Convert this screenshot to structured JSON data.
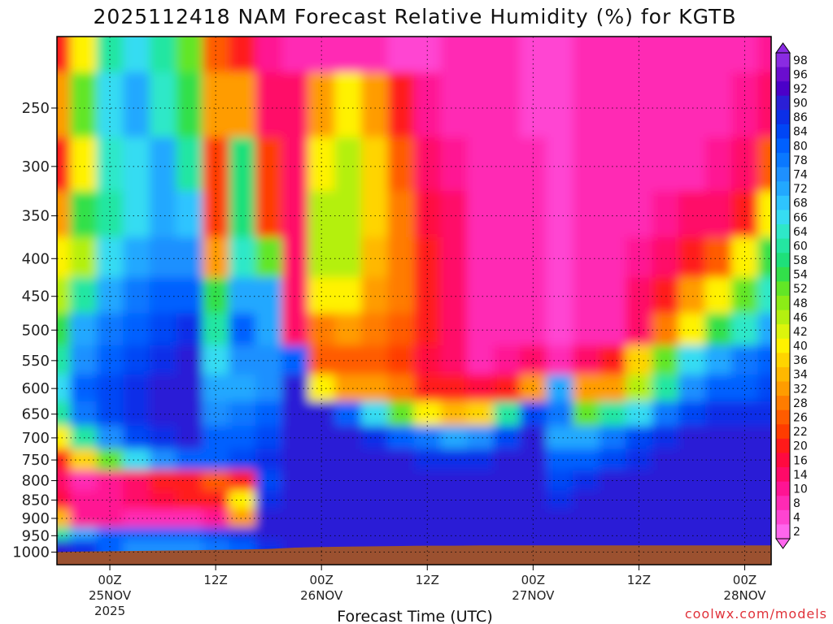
{
  "chart_data": {
    "type": "heatmap",
    "title": "2025112418 NAM Forecast Relative Humidity (%) for KGTB",
    "xlabel": "Forecast Time (UTC)",
    "ylabel": "",
    "credit": "coolwx.com/models",
    "y_scale": "log-pressure",
    "y_axis_units": "hPa",
    "ylim": [
      1040,
      200
    ],
    "xlim": [
      "2025-11-24 18Z",
      "2025-11-28 03Z"
    ],
    "yticks": [
      250,
      300,
      350,
      400,
      450,
      500,
      550,
      600,
      650,
      700,
      750,
      800,
      850,
      900,
      950,
      1000
    ],
    "xticks": [
      {
        "time": "2025-11-25 00Z",
        "line1": "00Z",
        "line2": "25NOV",
        "line3": "2025"
      },
      {
        "time": "2025-11-25 12Z",
        "line1": "12Z",
        "line2": "",
        "line3": ""
      },
      {
        "time": "2025-11-26 00Z",
        "line1": "00Z",
        "line2": "26NOV",
        "line3": ""
      },
      {
        "time": "2025-11-26 12Z",
        "line1": "12Z",
        "line2": "",
        "line3": ""
      },
      {
        "time": "2025-11-27 00Z",
        "line1": "00Z",
        "line2": "27NOV",
        "line3": ""
      },
      {
        "time": "2025-11-27 12Z",
        "line1": "12Z",
        "line2": "",
        "line3": ""
      },
      {
        "time": "2025-11-28 00Z",
        "line1": "00Z",
        "line2": "28NOV",
        "line3": ""
      }
    ],
    "grid": true,
    "legend": "right colorbar",
    "colorbar_labels": [
      "98",
      "96",
      "92",
      "90",
      "86",
      "84",
      "80",
      "78",
      "74",
      "72",
      "68",
      "66",
      "64",
      "60",
      "58",
      "54",
      "52",
      "48",
      "46",
      "42",
      "40",
      "36",
      "34",
      "32",
      "28",
      "26",
      "22",
      "20",
      "16",
      "14",
      "10",
      "8",
      "4",
      "2"
    ],
    "colorbar_colors": [
      "#8a2be2",
      "#6a0dcf",
      "#4b00c8",
      "#2a1fd6",
      "#0b2fe8",
      "#0046f5",
      "#0060ff",
      "#0a78ff",
      "#1e90ff",
      "#22a8ff",
      "#2ec4ff",
      "#36dcf2",
      "#2ee8c8",
      "#24e6a2",
      "#1ee07a",
      "#32e04a",
      "#62e626",
      "#8cec16",
      "#b4f010",
      "#dcf40c",
      "#fff200",
      "#ffd400",
      "#ffb800",
      "#ff9c00",
      "#ff7c00",
      "#ff5c00",
      "#ff3c00",
      "#ff1a1a",
      "#ff0a40",
      "#ff0a68",
      "#ff1493",
      "#ff2ab4",
      "#ff44d2",
      "#ff66ee"
    ],
    "rh_field": {
      "times": [
        "2025-11-24 18Z",
        "2025-11-24 21Z",
        "2025-11-25 00Z",
        "2025-11-25 03Z",
        "2025-11-25 06Z",
        "2025-11-25 09Z",
        "2025-11-25 12Z",
        "2025-11-25 15Z",
        "2025-11-25 18Z",
        "2025-11-25 21Z",
        "2025-11-26 00Z",
        "2025-11-26 03Z",
        "2025-11-26 06Z",
        "2025-11-26 09Z",
        "2025-11-26 12Z",
        "2025-11-26 15Z",
        "2025-11-26 18Z",
        "2025-11-26 21Z",
        "2025-11-27 00Z",
        "2025-11-27 03Z",
        "2025-11-27 06Z",
        "2025-11-27 09Z",
        "2025-11-27 12Z",
        "2025-11-27 15Z",
        "2025-11-27 18Z",
        "2025-11-27 21Z",
        "2025-11-28 00Z",
        "2025-11-28 03Z"
      ],
      "levels": [
        200,
        250,
        300,
        350,
        400,
        450,
        500,
        550,
        600,
        650,
        700,
        750,
        800,
        850,
        900,
        950,
        975
      ],
      "values": [
        [
          20,
          40,
          60,
          66,
          60,
          50,
          25,
          20,
          10,
          8,
          6,
          5,
          5,
          4,
          4,
          5,
          6,
          5,
          4,
          4,
          5,
          6,
          8,
          6,
          5,
          6,
          8,
          10
        ],
        [
          30,
          50,
          66,
          70,
          64,
          54,
          30,
          30,
          14,
          12,
          30,
          40,
          30,
          20,
          10,
          8,
          6,
          5,
          4,
          4,
          5,
          6,
          8,
          7,
          6,
          8,
          10,
          14
        ],
        [
          20,
          40,
          62,
          66,
          70,
          60,
          22,
          56,
          22,
          14,
          40,
          46,
          36,
          26,
          14,
          10,
          8,
          6,
          5,
          4,
          5,
          6,
          8,
          8,
          8,
          10,
          14,
          26
        ],
        [
          30,
          54,
          60,
          66,
          70,
          68,
          22,
          58,
          22,
          14,
          46,
          46,
          36,
          28,
          16,
          12,
          8,
          6,
          5,
          4,
          5,
          6,
          8,
          10,
          12,
          14,
          20,
          40
        ],
        [
          40,
          46,
          66,
          72,
          74,
          74,
          30,
          64,
          50,
          12,
          44,
          46,
          34,
          28,
          18,
          12,
          8,
          6,
          5,
          4,
          5,
          6,
          10,
          14,
          18,
          24,
          40,
          54
        ],
        [
          46,
          60,
          70,
          76,
          80,
          80,
          54,
          70,
          70,
          14,
          40,
          40,
          30,
          28,
          18,
          12,
          8,
          6,
          5,
          4,
          5,
          8,
          12,
          20,
          30,
          40,
          50,
          64
        ],
        [
          54,
          70,
          76,
          80,
          84,
          86,
          60,
          80,
          72,
          14,
          28,
          30,
          28,
          26,
          18,
          12,
          8,
          6,
          5,
          4,
          5,
          8,
          14,
          28,
          40,
          54,
          64,
          70
        ],
        [
          60,
          74,
          80,
          84,
          86,
          88,
          66,
          74,
          74,
          80,
          24,
          26,
          24,
          22,
          16,
          12,
          8,
          10,
          12,
          6,
          12,
          18,
          36,
          52,
          66,
          72,
          76,
          80
        ],
        [
          66,
          80,
          84,
          86,
          88,
          90,
          70,
          70,
          74,
          88,
          40,
          32,
          30,
          28,
          20,
          18,
          16,
          20,
          30,
          70,
          30,
          30,
          44,
          60,
          74,
          80,
          80,
          84
        ],
        [
          60,
          76,
          84,
          86,
          88,
          90,
          74,
          76,
          80,
          90,
          88,
          80,
          66,
          50,
          40,
          34,
          36,
          60,
          84,
          78,
          50,
          60,
          66,
          76,
          84,
          86,
          86,
          86
        ],
        [
          40,
          60,
          74,
          84,
          86,
          88,
          80,
          80,
          82,
          90,
          90,
          90,
          86,
          80,
          76,
          72,
          74,
          84,
          90,
          70,
          70,
          76,
          84,
          86,
          90,
          90,
          90,
          90
        ],
        [
          20,
          36,
          50,
          66,
          74,
          80,
          80,
          84,
          86,
          90,
          90,
          90,
          90,
          88,
          86,
          86,
          86,
          88,
          90,
          80,
          80,
          84,
          86,
          88,
          90,
          90,
          90,
          90
        ],
        [
          14,
          8,
          10,
          14,
          20,
          20,
          24,
          20,
          84,
          90,
          90,
          90,
          90,
          90,
          90,
          90,
          90,
          90,
          90,
          84,
          86,
          88,
          88,
          90,
          90,
          90,
          90,
          90
        ],
        [
          16,
          10,
          10,
          14,
          16,
          18,
          20,
          40,
          86,
          90,
          90,
          90,
          90,
          90,
          90,
          90,
          90,
          90,
          90,
          86,
          88,
          90,
          90,
          90,
          90,
          90,
          90,
          90
        ],
        [
          34,
          10,
          10,
          8,
          8,
          8,
          10,
          30,
          88,
          90,
          90,
          90,
          90,
          90,
          90,
          90,
          90,
          90,
          90,
          90,
          90,
          90,
          90,
          90,
          90,
          90,
          90,
          90
        ],
        [
          60,
          70,
          80,
          80,
          80,
          80,
          82,
          86,
          88,
          90,
          90,
          90,
          90,
          90,
          90,
          90,
          90,
          90,
          90,
          90,
          90,
          90,
          90,
          90,
          90,
          90,
          90,
          90
        ],
        [
          90,
          86,
          80,
          74,
          74,
          74,
          76,
          80,
          86,
          90,
          90,
          90,
          90,
          90,
          90,
          90,
          90,
          90,
          90,
          90,
          90,
          90,
          90,
          90,
          90,
          90,
          90,
          90
        ]
      ]
    },
    "terrain": {
      "color": "#9b5130",
      "surface_pressure": [
        1000,
        998,
        997,
        996,
        995,
        994,
        993,
        992,
        990,
        986,
        984,
        983,
        982,
        981,
        980,
        980,
        979,
        979,
        979,
        979,
        979,
        979,
        979,
        979,
        979,
        979,
        979,
        979
      ]
    }
  }
}
